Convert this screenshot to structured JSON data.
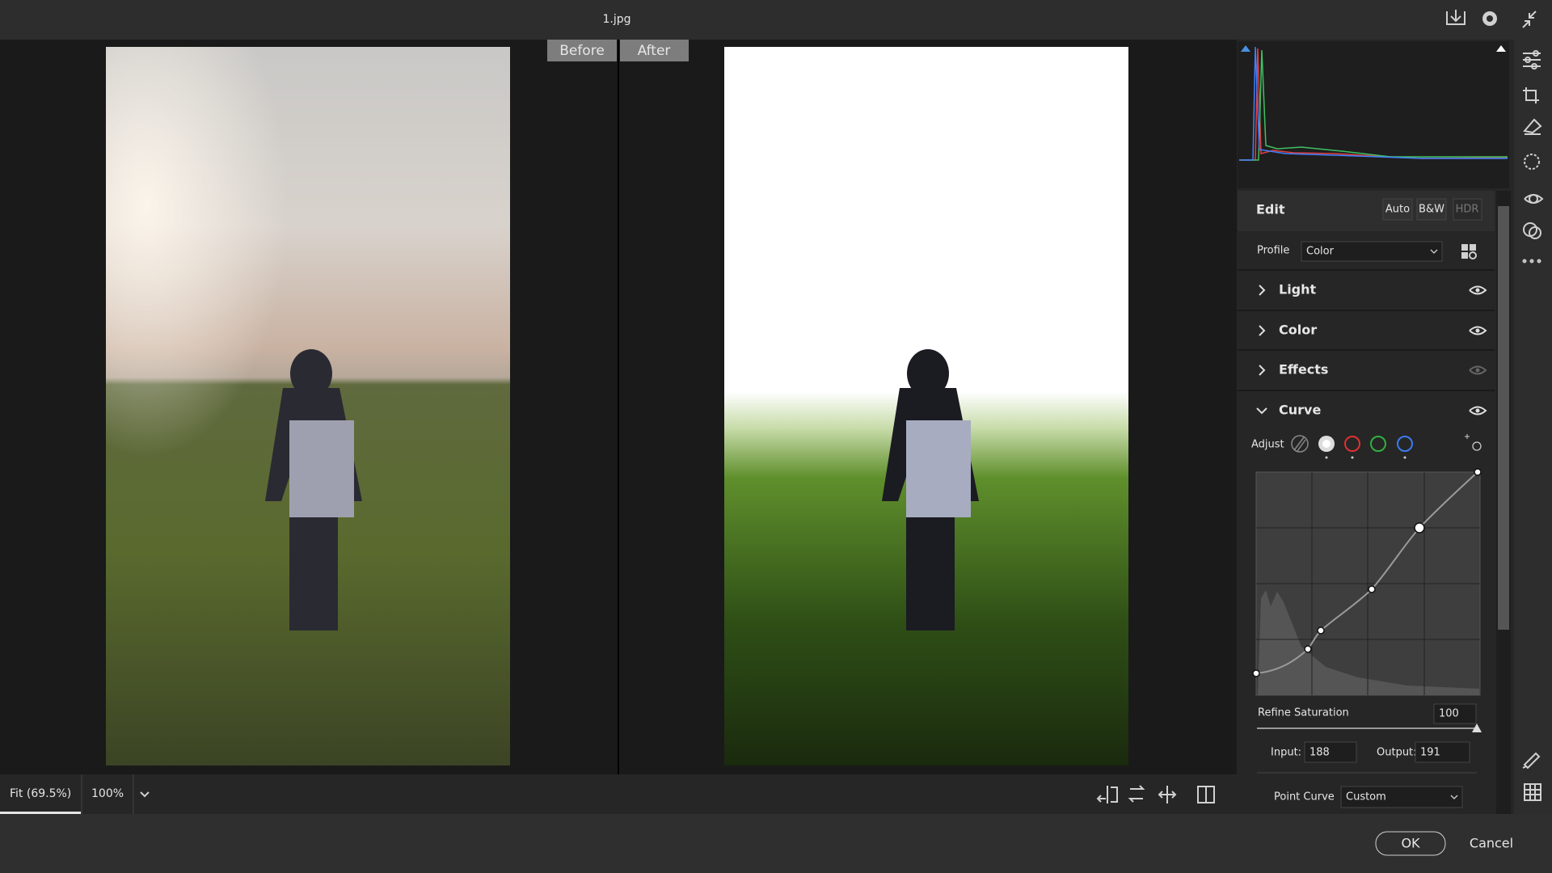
{
  "window": {
    "title": "1.jpg"
  },
  "compare": {
    "before": "Before",
    "after": "After"
  },
  "viewer": {
    "zoom_fit": "Fit (69.5%)",
    "zoom_100": "100%"
  },
  "edit_panel": {
    "title": "Edit",
    "buttons": [
      "Auto",
      "B&W",
      "HDR"
    ],
    "profile_label": "Profile",
    "profile_value": "Color",
    "sections": [
      "Light",
      "Color",
      "Effects",
      "Curve"
    ],
    "curve": {
      "adjust_label": "Adjust",
      "refine_saturation_label": "Refine Saturation",
      "refine_saturation_value": 100,
      "input_label": "Input:",
      "input_value": 188,
      "output_label": "Output:",
      "output_value": 191,
      "point_curve_label": "Point Curve",
      "point_curve_value": "Custom"
    }
  },
  "footer": {
    "ok": "OK",
    "cancel": "Cancel"
  }
}
